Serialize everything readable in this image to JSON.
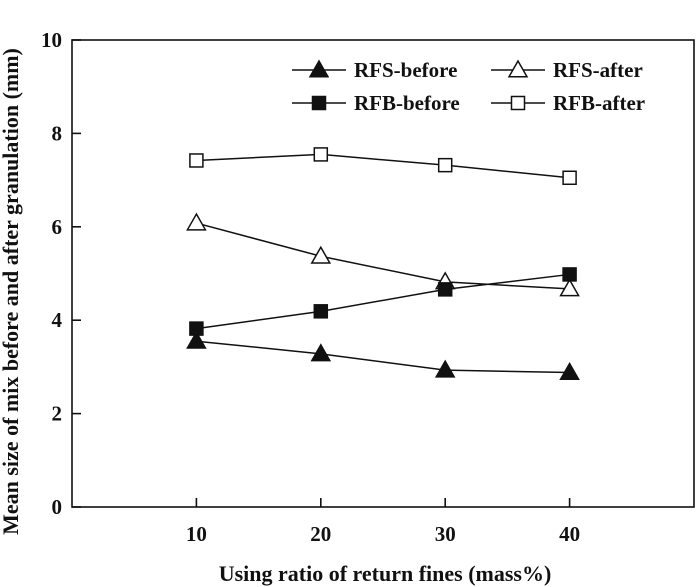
{
  "chart_data": {
    "type": "line",
    "xlabel": "Using ratio of return fines (mass%)",
    "ylabel": "Mean size of mix before and after granulation (mm)",
    "x": [
      10,
      20,
      30,
      40
    ],
    "xlim": [
      0,
      50
    ],
    "ylim": [
      0,
      10
    ],
    "xticks": [
      10,
      20,
      30,
      40
    ],
    "yticks": [
      0,
      2,
      4,
      6,
      8,
      10
    ],
    "grid": false,
    "legend_position": "top-right",
    "series": [
      {
        "name": "RFS-before",
        "marker": "triangle-filled",
        "values": [
          3.55,
          3.28,
          2.93,
          2.88
        ]
      },
      {
        "name": "RFS-after",
        "marker": "triangle-open",
        "values": [
          6.08,
          5.37,
          4.82,
          4.67
        ]
      },
      {
        "name": "RFB-before",
        "marker": "square-filled",
        "values": [
          3.82,
          4.19,
          4.66,
          4.98
        ]
      },
      {
        "name": "RFB-after",
        "marker": "square-open",
        "values": [
          7.42,
          7.55,
          7.32,
          7.05
        ]
      }
    ]
  }
}
